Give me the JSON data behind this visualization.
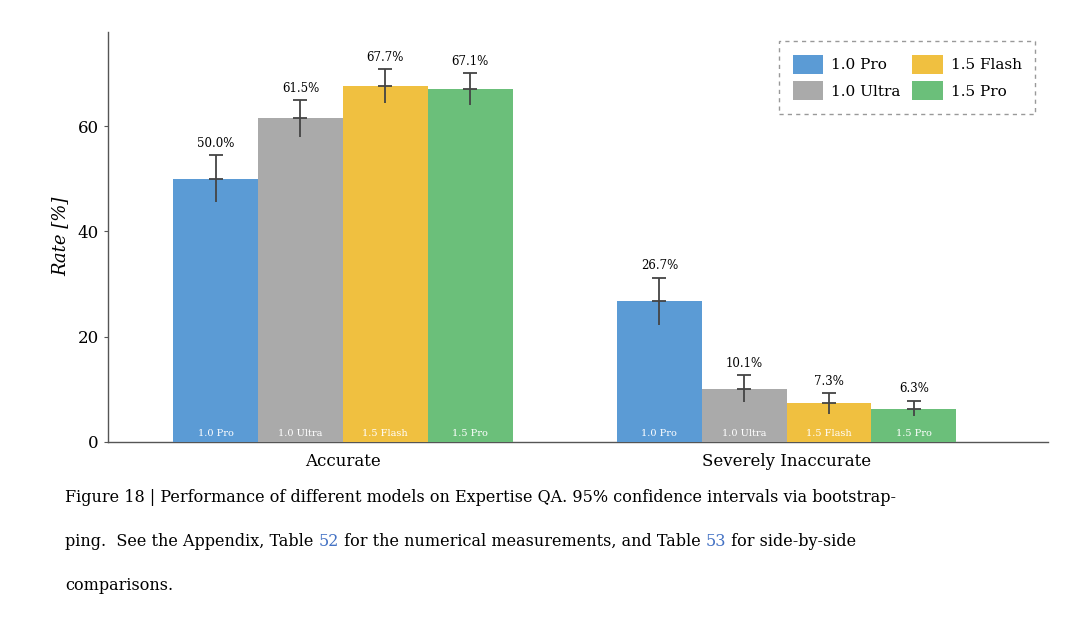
{
  "categories": [
    "Accurate",
    "Severely Inaccurate"
  ],
  "models": [
    "1.0 Pro",
    "1.0 Ultra",
    "1.5 Flash",
    "1.5 Pro"
  ],
  "colors": [
    "#5B9BD5",
    "#AAAAAA",
    "#F0C040",
    "#6BBF7A"
  ],
  "values": {
    "Accurate": [
      50.0,
      61.5,
      67.7,
      67.1
    ],
    "Severely Inaccurate": [
      26.7,
      10.1,
      7.3,
      6.3
    ]
  },
  "errors": {
    "Accurate": [
      4.5,
      3.5,
      3.2,
      3.0
    ],
    "Severely Inaccurate": [
      4.5,
      2.5,
      2.0,
      1.5
    ]
  },
  "labels": {
    "Accurate": [
      "50.0%",
      "61.5%",
      "67.7%",
      "67.1%"
    ],
    "Severely Inaccurate": [
      "26.7%",
      "10.1%",
      "7.3%",
      "6.3%"
    ]
  },
  "ylabel": "Rate [%]",
  "yticks": [
    0,
    20,
    40,
    60
  ],
  "legend_labels": [
    "1.0 Pro",
    "1.0 Ultra",
    "1.5 Flash",
    "1.5 Pro"
  ],
  "background_color": "#FFFFFF",
  "caption_line1": "Figure 18 | Performance of different models on Expertise QA. 95% confidence intervals via bootstrap-",
  "caption_part2a": "ping.  See the Appendix, Table ",
  "caption_ref1": "52",
  "caption_part2b": " for the numerical measurements, and Table ",
  "caption_ref2": "53",
  "caption_part2c": " for side-by-side",
  "caption_line3": "comparisons."
}
